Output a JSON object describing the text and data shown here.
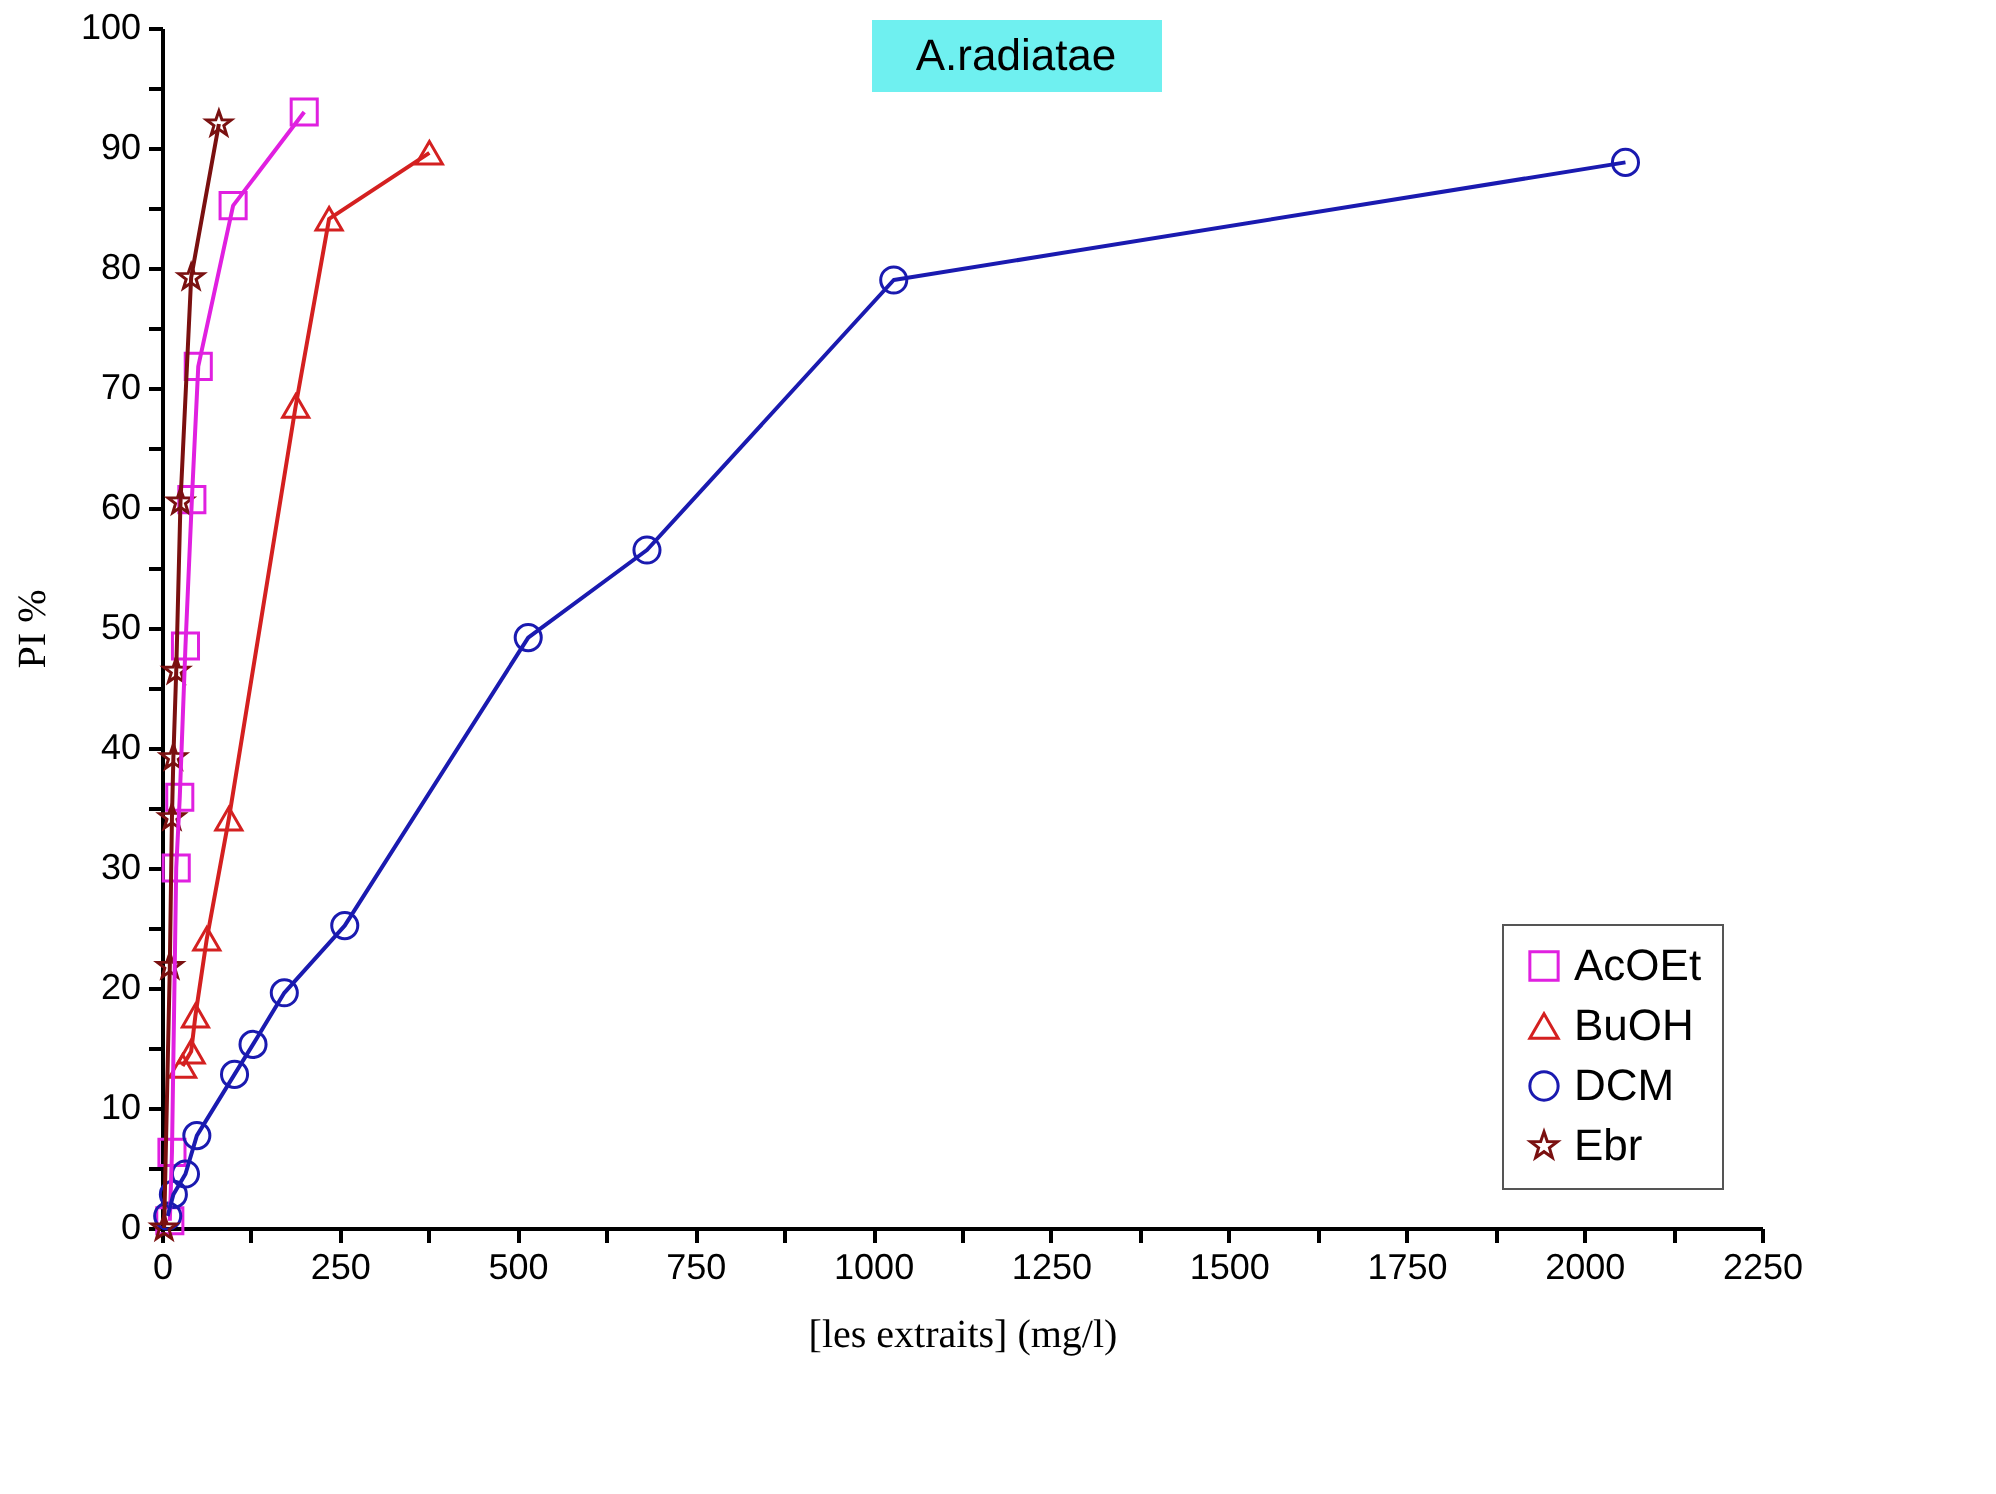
{
  "chart_data": {
    "type": "line",
    "title": "A.radiatae",
    "xlabel": "[les extraits] (mg/l)",
    "ylabel": "PI %",
    "series": [
      {
        "name": "AcOEt",
        "color": "#e020e0",
        "marker": "square",
        "x": [
          11,
          14,
          20,
          25,
          33,
          42,
          51,
          100,
          200
        ],
        "values": [
          0.6,
          6.3,
          30.0,
          35.9,
          48.5,
          60.7,
          71.8,
          85.2,
          93.0
        ]
      },
      {
        "name": "BuOH",
        "color": "#d42020",
        "marker": "triangle",
        "x": [
          29,
          41,
          47,
          63,
          94,
          188,
          235,
          376
        ],
        "values": [
          13.5,
          14.7,
          17.7,
          24.1,
          34.1,
          68.5,
          84.1,
          89.6
        ]
      },
      {
        "name": "DCM",
        "color": "#1a1ab0",
        "marker": "circle",
        "x": [
          8,
          16,
          33,
          49,
          102,
          128,
          172,
          257,
          515,
          682,
          1029,
          2058
        ],
        "values": [
          1,
          2.8,
          4.5,
          7.7,
          12.8,
          15.3,
          19.6,
          25.2,
          49.2,
          56.5,
          79.0,
          88.8
        ]
      },
      {
        "name": "Ebr",
        "color": "#7a1010",
        "marker": "star",
        "x": [
          3,
          11,
          14,
          16,
          20,
          26,
          41,
          80
        ],
        "values": [
          0,
          21.8,
          34.2,
          39.2,
          46.4,
          60.5,
          79.2,
          92.0
        ]
      }
    ],
    "xlim": [
      0,
      2250
    ],
    "ylim": [
      0,
      100
    ],
    "xticks": [
      0,
      {
        "value": 125,
        "label": null
      },
      250,
      {
        "value": 375,
        "label": null
      },
      500,
      {
        "value": 625,
        "label": null
      },
      750,
      {
        "value": 875,
        "label": null
      },
      1000,
      {
        "value": 1125,
        "label": null
      },
      1250,
      {
        "value": 1375,
        "label": null
      },
      1500,
      {
        "value": 1625,
        "label": null
      },
      1750,
      {
        "value": 1875,
        "label": null
      },
      2000,
      {
        "value": 2125,
        "label": null
      },
      2250
    ],
    "yticks": [
      0,
      {
        "value": 5,
        "label": null
      },
      10,
      {
        "value": 15,
        "label": null
      },
      20,
      {
        "value": 25,
        "label": null
      },
      30,
      {
        "value": 35,
        "label": null
      },
      40,
      {
        "value": 45,
        "label": null
      },
      50,
      {
        "value": 55,
        "label": null
      },
      60,
      {
        "value": 65,
        "label": null
      },
      70,
      {
        "value": 75,
        "label": null
      },
      80,
      {
        "value": 85,
        "label": null
      },
      90,
      {
        "value": 95,
        "label": null
      },
      100
    ],
    "grid": false,
    "legend": "bottom right",
    "line_style": "solid"
  }
}
